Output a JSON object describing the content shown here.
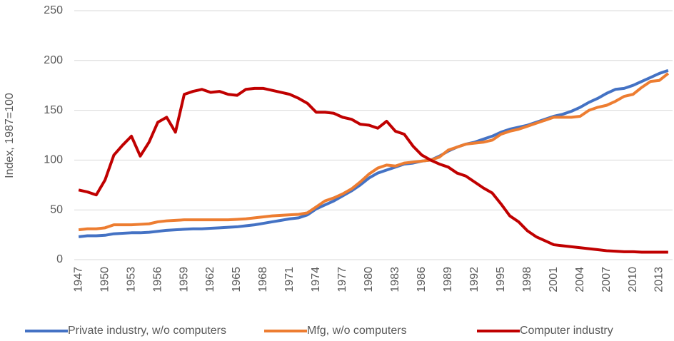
{
  "chart_data": {
    "type": "line",
    "y_label": "Index, 1987=100",
    "categories": [
      "1947",
      null,
      null,
      "1950",
      null,
      null,
      "1953",
      null,
      null,
      "1956",
      null,
      null,
      "1959",
      null,
      null,
      "1962",
      null,
      null,
      "1965",
      null,
      null,
      "1968",
      null,
      null,
      "1971",
      null,
      null,
      "1974",
      null,
      null,
      "1977",
      null,
      null,
      "1980",
      null,
      null,
      "1983",
      null,
      null,
      "1986",
      null,
      null,
      "1989",
      null,
      null,
      "1992",
      null,
      null,
      "1995",
      null,
      null,
      "1998",
      null,
      null,
      "2001",
      null,
      null,
      "2004",
      null,
      null,
      "2007",
      null,
      null,
      "2010",
      null,
      null,
      "2013",
      null
    ],
    "series": [
      {
        "name": "Private industry, w/o computers",
        "color": "#4472c4",
        "values": [
          23,
          24,
          24,
          24.5,
          26,
          26.5,
          27,
          27,
          27.5,
          28.5,
          29.5,
          30,
          30.5,
          31,
          31,
          31.5,
          32,
          32.5,
          33,
          34,
          35,
          36.5,
          38,
          39.5,
          41,
          42,
          45,
          51,
          55,
          59,
          64,
          69,
          75,
          82,
          87,
          90,
          93,
          96,
          97,
          99,
          100,
          104,
          109,
          113,
          116,
          118,
          121,
          124,
          128,
          131,
          133,
          135,
          138,
          141,
          144,
          146,
          149,
          153,
          158,
          162,
          167,
          171,
          172,
          175,
          179,
          183,
          187,
          190
        ]
      },
      {
        "name": "Mfg, w/o computers",
        "color": "#ed7d31",
        "values": [
          30,
          31,
          31,
          32,
          35,
          35,
          35,
          35.5,
          36,
          38,
          39,
          39.5,
          40,
          40,
          40,
          40,
          40,
          40,
          40.5,
          41,
          42,
          43,
          44,
          44.5,
          45,
          45.5,
          47,
          53,
          59,
          62,
          66,
          71,
          78,
          86,
          92,
          95,
          94,
          97,
          98,
          99,
          100,
          103,
          110,
          113,
          116,
          117,
          118,
          120,
          126,
          129,
          131,
          134,
          137,
          140,
          143,
          143,
          143,
          144,
          150,
          153,
          155,
          159,
          164,
          166,
          173,
          179,
          180,
          187
        ]
      },
      {
        "name": "Computer industry",
        "color": "#c00000",
        "values": [
          70,
          68,
          65,
          80,
          105,
          115,
          124,
          104,
          118,
          138,
          143,
          128,
          166,
          169,
          171,
          168,
          169,
          166,
          165,
          171,
          172,
          172,
          170,
          168,
          166,
          162,
          157,
          148,
          148,
          147,
          143,
          141,
          136,
          135,
          132,
          139,
          129,
          126,
          114,
          105,
          100,
          96,
          93,
          87,
          84,
          78,
          72,
          67,
          56,
          44,
          38,
          29,
          23,
          19,
          15,
          14,
          13,
          12,
          11,
          10,
          9,
          8.5,
          8,
          8,
          7.5,
          7.5,
          7.5,
          7.5
        ]
      }
    ],
    "ylim": [
      0,
      250
    ],
    "yticks": [
      0,
      50,
      100,
      150,
      200,
      250
    ],
    "grid": true,
    "legend": "bottom"
  }
}
